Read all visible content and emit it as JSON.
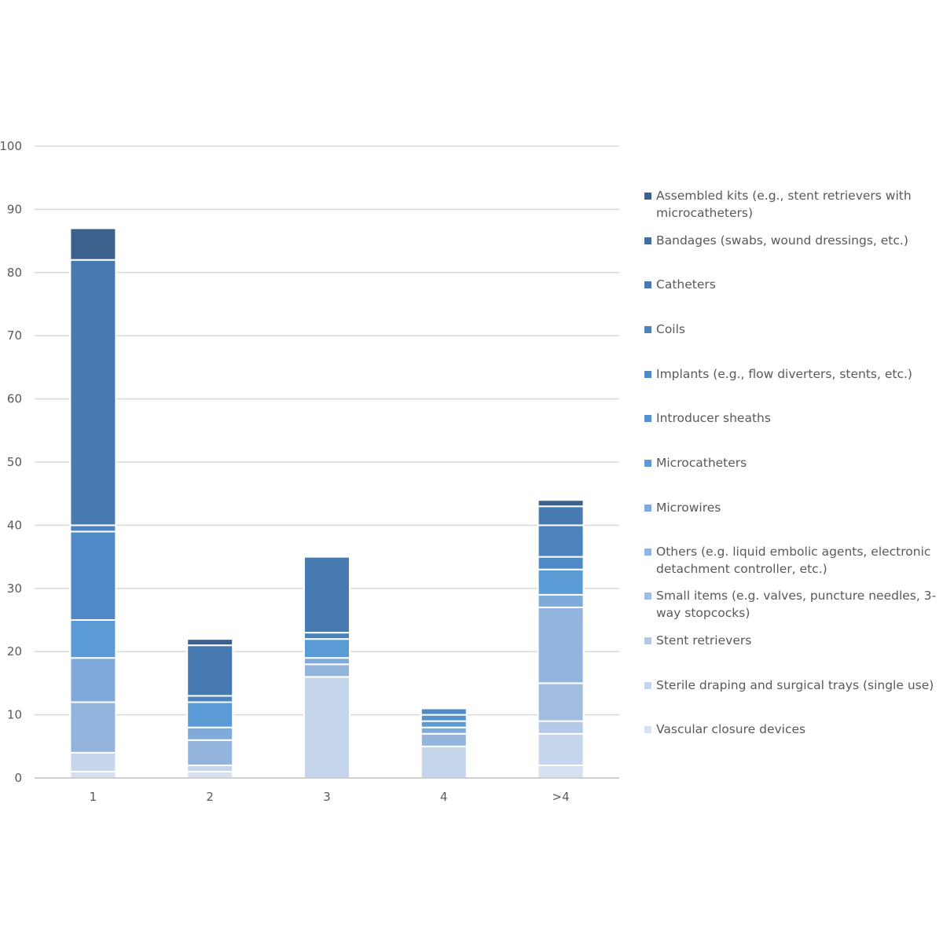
{
  "chart_data": {
    "type": "bar",
    "stacked": true,
    "title": "",
    "xlabel": "",
    "ylabel": "",
    "ylim": [
      0,
      100
    ],
    "yticks": [
      0,
      10,
      20,
      30,
      40,
      50,
      60,
      70,
      80,
      90,
      100
    ],
    "grid": true,
    "legend_position": "right",
    "categories": [
      "1",
      "2",
      "3",
      "4",
      ">4"
    ],
    "series": [
      {
        "name": "Vascular closure devices",
        "color": "#d6e0f0",
        "values": [
          1,
          1,
          0,
          0,
          2
        ]
      },
      {
        "name": "Sterile draping and surgical trays (single use)",
        "color": "#c5d5eb",
        "values": [
          3,
          1,
          16,
          5,
          5
        ]
      },
      {
        "name": "Stent retrievers",
        "color": "#b4c9e5",
        "values": [
          0,
          0,
          0,
          0,
          2
        ]
      },
      {
        "name": "Small items (e.g. valves, puncture needles, 3-way stopcocks)",
        "color": "#a3bde0",
        "values": [
          0,
          0,
          0,
          0,
          6
        ]
      },
      {
        "name": "Others (e.g. liquid embolic agents, electronic detachment controller, etc.)",
        "color": "#93b4dc",
        "values": [
          8,
          4,
          2,
          2,
          12
        ]
      },
      {
        "name": "Microwires",
        "color": "#7faad9",
        "values": [
          7,
          2,
          1,
          1,
          2
        ]
      },
      {
        "name": "Microcatheters",
        "color": "#5b9bd5",
        "values": [
          6,
          4,
          3,
          1,
          4
        ]
      },
      {
        "name": "Introducer sheaths",
        "color": "#5592ce",
        "values": [
          0,
          0,
          0,
          1,
          0
        ]
      },
      {
        "name": "Implants (e.g., flow diverters, stents, etc.)",
        "color": "#4f8ac6",
        "values": [
          14,
          0,
          0,
          1,
          2
        ]
      },
      {
        "name": "Coils",
        "color": "#4c83bd",
        "values": [
          1,
          1,
          1,
          0,
          5
        ]
      },
      {
        "name": "Catheters",
        "color": "#477ab0",
        "values": [
          42,
          8,
          12,
          0,
          3
        ]
      },
      {
        "name": "Bandages (swabs, wound dressings, etc.)",
        "color": "#426ea0",
        "values": [
          0,
          0,
          0,
          0,
          0
        ]
      },
      {
        "name": "Assembled kits (e.g., stent retrievers with microcatheters)",
        "color": "#3b628c",
        "values": [
          5,
          1,
          0,
          0,
          1
        ]
      }
    ]
  }
}
